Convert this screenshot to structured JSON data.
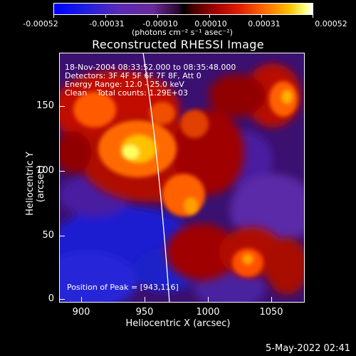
{
  "colorbar": {
    "ticks": [
      "-0.00052",
      "-0.00031",
      "-0.00010",
      "0.00010",
      "0.00031",
      "0.00052"
    ],
    "units": "(photons cm⁻² s⁻¹ asec⁻²)"
  },
  "title": "Reconstructed RHESSI Image",
  "annotations": {
    "time": "18-Nov-2004 08:33:52.000 to 08:35:48.000",
    "detectors": "Detectors: 3F 4F 5F 6F 7F 8F, Att 0",
    "energy": "Energy Range: 12.0 - 25.0 keV",
    "method": "Clean    Total counts: 1.29E+03",
    "peak": "Position of Peak = [943,116]"
  },
  "axes": {
    "xlabel": "Heliocentric X (arcsec)",
    "ylabel": "Heliocentric Y (arcsec)",
    "xticks": [
      "900",
      "950",
      "1000",
      "1050"
    ],
    "yticks": [
      "0",
      "50",
      "100",
      "150"
    ]
  },
  "date": "5-May-2022 02:41",
  "colors": {
    "background": "#000000",
    "text": "#ffffff",
    "low": "#0000ff",
    "mid": "#000000",
    "high": "#ffffff"
  }
}
